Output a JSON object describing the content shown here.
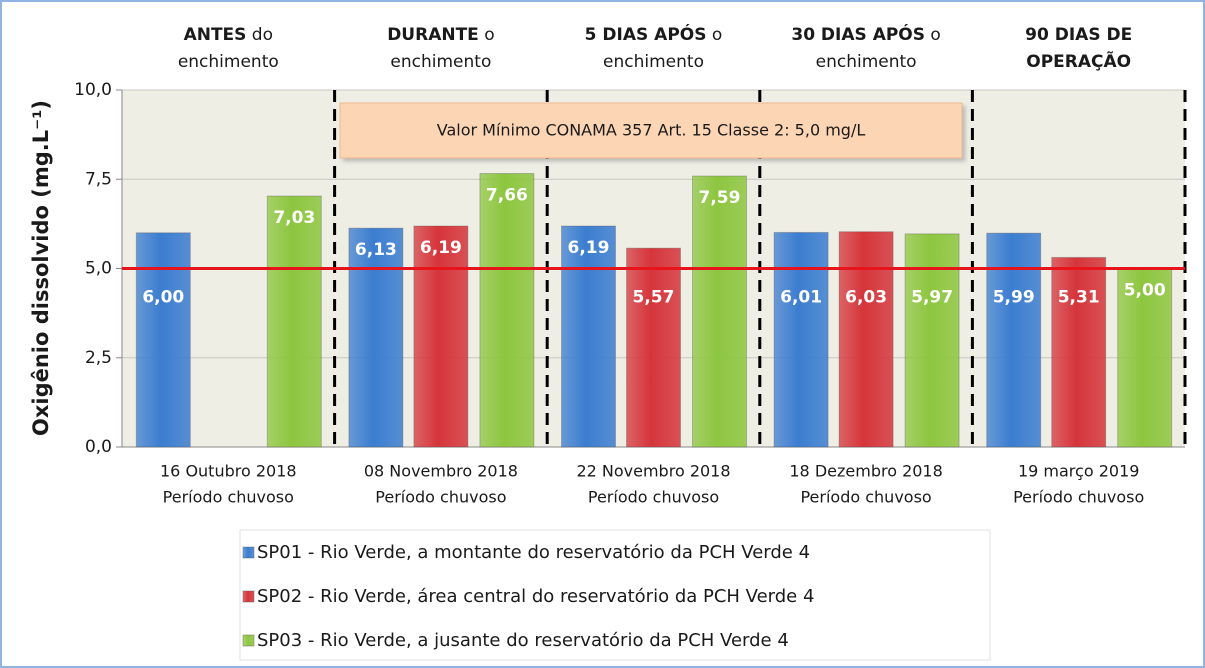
{
  "chart_data": {
    "type": "bar",
    "y_label": "Oxigênio dissolvido (mg.L⁻¹)",
    "phases": [
      [
        [
          {
            "text": "ANTES",
            "bold": true
          },
          {
            "text": " do",
            "bold": false
          }
        ],
        [
          {
            "text": "enchimento",
            "bold": false
          }
        ]
      ],
      [
        [
          {
            "text": "DURANTE",
            "bold": true
          },
          {
            "text": " o",
            "bold": false
          }
        ],
        [
          {
            "text": "enchimento",
            "bold": false
          }
        ]
      ],
      [
        [
          {
            "text": "5 DIAS APÓS",
            "bold": true
          },
          {
            "text": " o",
            "bold": false
          }
        ],
        [
          {
            "text": "enchimento",
            "bold": false
          }
        ]
      ],
      [
        [
          {
            "text": "30 DIAS APÓS",
            "bold": true
          },
          {
            "text": " o",
            "bold": false
          }
        ],
        [
          {
            "text": "enchimento",
            "bold": false
          }
        ]
      ],
      [
        [
          {
            "text": "90 DIAS DE",
            "bold": true
          }
        ],
        [
          {
            "text": "OPERAÇÃO",
            "bold": true
          }
        ]
      ]
    ],
    "annotation": "Valor Mínimo CONAMA 357 Art. 15 Classe 2: 5,0 mg/L",
    "reference_line": {
      "value": 5,
      "color": "#e8141b"
    },
    "categories": [
      [
        "16 Outubro 2018",
        "Período chuvoso"
      ],
      [
        "08 Novembro 2018",
        "Período chuvoso"
      ],
      [
        "22 Novembro 2018",
        "Período chuvoso"
      ],
      [
        "18 Dezembro 2018",
        "Período chuvoso"
      ],
      [
        "19 março 2019",
        "Período chuvoso"
      ]
    ],
    "series": [
      {
        "name": "SP01 - Rio Verde, a montante do reservatório da PCH Verde 4",
        "color": "#3b7dd0",
        "values": [
          6.0,
          6.13,
          6.19,
          6.01,
          5.99
        ],
        "value_labels": [
          "6,00",
          "6,13",
          "6,19",
          "6,01",
          "5,99"
        ]
      },
      {
        "name": "SP02 - Rio Verde, área central do reservatório da PCH Verde 4",
        "color": "#d5353b",
        "values": [
          null,
          6.19,
          5.57,
          6.03,
          5.31
        ],
        "value_labels": [
          null,
          "6,19",
          "5,57",
          "6,03",
          "5,31"
        ]
      },
      {
        "name": "SP03 - Rio Verde, a jusante do reservatório da PCH Verde 4",
        "color": "#8dc63f",
        "values": [
          7.03,
          7.66,
          7.59,
          5.97,
          5.0
        ],
        "value_labels": [
          "7,03",
          "7,66",
          "7,59",
          "5,97",
          "5,00"
        ]
      }
    ],
    "ylim": [
      0,
      10
    ],
    "yticks": [
      {
        "value": 0,
        "label": "0,0"
      },
      {
        "value": 2.5,
        "label": "2,5"
      },
      {
        "value": 5,
        "label": "5,0"
      },
      {
        "value": 7.5,
        "label": "7,5"
      },
      {
        "value": 10,
        "label": "10,0"
      }
    ],
    "grid": true
  }
}
